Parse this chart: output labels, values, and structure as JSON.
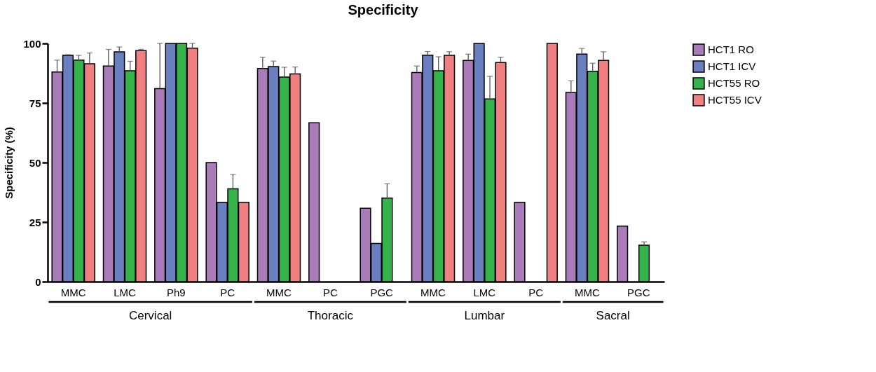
{
  "chart_data": {
    "type": "bar",
    "title": "Specificity",
    "ylabel": "Specificity (%)",
    "categories": [
      "MMC",
      "LMC",
      "Ph9",
      "PC",
      "MMC",
      "PC",
      "PGC",
      "MMC",
      "LMC",
      "PC",
      "MMC",
      "PGC"
    ],
    "series": [
      {
        "name": "HCT1 RO",
        "color": "#a97bb9",
        "values": [
          88,
          90.5,
          81,
          50,
          89.5,
          66.7,
          30.8,
          87.8,
          92.9,
          33.3,
          79.4,
          23.3
        ],
        "errors": [
          [
            88,
            93
          ],
          [
            90.5,
            97.5
          ],
          [
            81,
            100
          ],
          null,
          [
            89.5,
            94.2
          ],
          null,
          null,
          [
            87.8,
            90.5
          ],
          [
            92.9,
            95.5
          ],
          null,
          [
            79.4,
            84.3
          ],
          null
        ]
      },
      {
        "name": "HCT1 ICV",
        "color": "#6a7fbf",
        "values": [
          95,
          96.5,
          100,
          33.3,
          90.3,
          null,
          16,
          95.1,
          100,
          null,
          95.5,
          null
        ],
        "errors": [
          [
            95,
            95.3
          ],
          [
            96.5,
            98.5
          ],
          null,
          null,
          [
            90.3,
            92.6
          ],
          null,
          null,
          [
            95.1,
            96.6
          ],
          null,
          null,
          [
            95.5,
            97.9
          ],
          null
        ]
      },
      {
        "name": "HCT55 RO",
        "color": "#36b24a",
        "values": [
          93,
          88.5,
          100,
          39,
          85.9,
          null,
          35.1,
          88.5,
          76.7,
          null,
          88.3,
          15.3
        ],
        "errors": [
          [
            93,
            95
          ],
          [
            88.5,
            92.5
          ],
          null,
          [
            39,
            45
          ],
          [
            85.9,
            90
          ],
          null,
          [
            35.1,
            41.1
          ],
          [
            88.5,
            94.4
          ],
          [
            76.7,
            86.2
          ],
          null,
          [
            88.3,
            91.7
          ],
          [
            15.3,
            16.7
          ]
        ]
      },
      {
        "name": "HCT55 ICV",
        "color": "#f07f82",
        "values": [
          91.5,
          97,
          98,
          33.3,
          87.2,
          null,
          null,
          95,
          92,
          100,
          92.9,
          null
        ],
        "errors": [
          [
            91.5,
            96
          ],
          [
            97,
            97.5
          ],
          [
            98,
            100
          ],
          null,
          [
            87.2,
            90.1
          ],
          null,
          null,
          [
            95,
            96.5
          ],
          [
            92,
            94.2
          ],
          null,
          [
            92.9,
            96.5
          ],
          null
        ]
      }
    ],
    "ylim": [
      0,
      100
    ],
    "yticks": [
      0,
      25,
      50,
      75,
      100
    ],
    "grid": false,
    "legend": "right",
    "annotations": [
      "Cervical",
      "Thoracic",
      "Lumbar",
      "Sacral"
    ]
  }
}
